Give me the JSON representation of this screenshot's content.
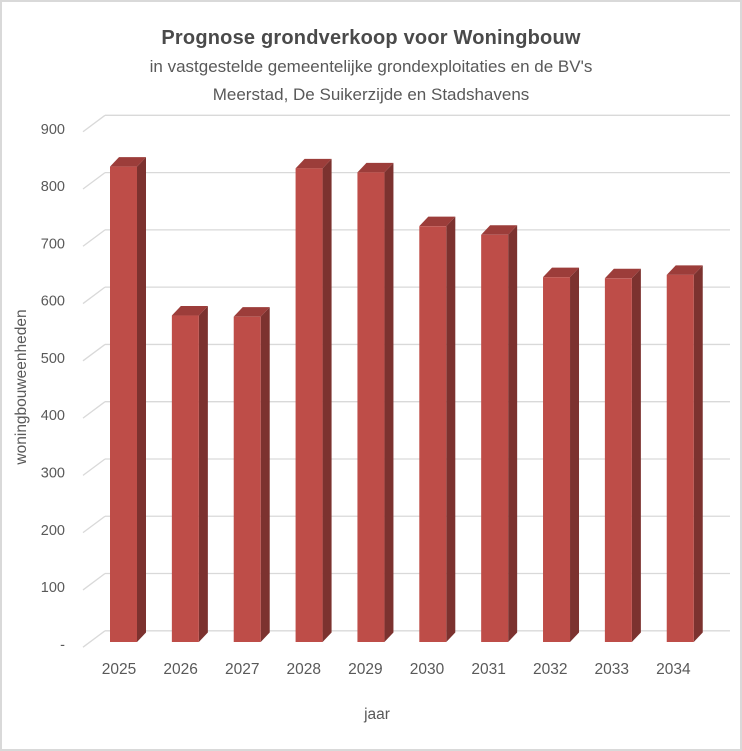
{
  "window": {
    "background": "#FFFFFF",
    "border_color": "#D9D9D9"
  },
  "chart_data": {
    "type": "bar",
    "variant": "3d-column",
    "title": "Prognose grondverkoop voor Woningbouw",
    "subtitle_line1": "in vastgestelde gemeentelijke grondexploitaties en de BV's",
    "subtitle_line2": "Meerstad, De Suikerzijde en Stadshavens",
    "categories": [
      "2025",
      "2026",
      "2027",
      "2028",
      "2029",
      "2030",
      "2031",
      "2032",
      "2033",
      "2034"
    ],
    "values": [
      830,
      570,
      568,
      827,
      820,
      726,
      711,
      637,
      635,
      641
    ],
    "xlabel": "jaar",
    "ylabel": "woningbouweenheden",
    "ylim": [
      0,
      900
    ],
    "ytick_step": 100,
    "zero_tick_label": "-",
    "grid": true,
    "legend": "none",
    "colors": {
      "bar_front": "#BE4D48",
      "bar_side": "#7C322F",
      "bar_top": "#9C3D3A",
      "gridline": "#D9D9D9",
      "axis_text": "#595959",
      "title_text": "#4A4A4A"
    }
  }
}
